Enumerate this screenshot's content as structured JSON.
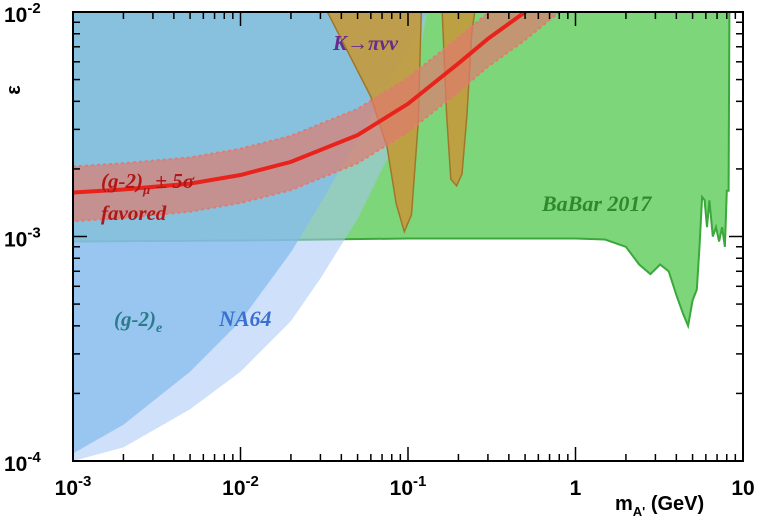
{
  "chart_data": {
    "type": "area",
    "title": "",
    "xlabel_main": "m",
    "xlabel_sub": "A'",
    "xlabel_unit": " (GeV)",
    "ylabel": "ε",
    "x_scale": "log",
    "y_scale": "log",
    "xlim": [
      0.001,
      10
    ],
    "ylim": [
      0.0001,
      0.01
    ],
    "grid": false,
    "x_ticks": [
      {
        "value": 0.001,
        "base": "10",
        "exp": "-3"
      },
      {
        "value": 0.01,
        "base": "10",
        "exp": "-2"
      },
      {
        "value": 0.1,
        "base": "10",
        "exp": "-1"
      },
      {
        "value": 1,
        "base": "1",
        "exp": ""
      },
      {
        "value": 10,
        "base": "10",
        "exp": ""
      }
    ],
    "y_ticks": [
      {
        "value": 0.0001,
        "base": "10",
        "exp": "-4"
      },
      {
        "value": 0.001,
        "base": "10",
        "exp": "-3"
      },
      {
        "value": 0.01,
        "base": "10",
        "exp": "-2"
      }
    ],
    "regions": [
      {
        "id": "babar",
        "label": "BaBar 2017",
        "color": "#7ed67a",
        "edge": "#3aa83a",
        "boundary": [
          [
            0.001,
            0.00095
          ],
          [
            0.01,
            0.00096
          ],
          [
            0.1,
            0.00098
          ],
          [
            1,
            0.00098
          ],
          [
            1.5,
            0.00097
          ],
          [
            2.0,
            0.0009
          ],
          [
            2.4,
            0.00075
          ],
          [
            2.8,
            0.00068
          ],
          [
            3.2,
            0.00075
          ],
          [
            3.6,
            0.0007
          ],
          [
            4.0,
            0.00055
          ],
          [
            4.4,
            0.00045
          ],
          [
            4.7,
            0.0004
          ],
          [
            5.0,
            0.00052
          ],
          [
            5.3,
            0.00058
          ],
          [
            5.5,
            0.0009
          ],
          [
            5.7,
            0.0015
          ],
          [
            5.9,
            0.00145
          ],
          [
            6.1,
            0.0011
          ],
          [
            6.3,
            0.00145
          ],
          [
            6.6,
            0.001
          ],
          [
            6.9,
            0.0011
          ],
          [
            7.2,
            0.00095
          ],
          [
            7.5,
            0.0011
          ],
          [
            7.8,
            0.0009
          ],
          [
            8.0,
            0.0016
          ],
          [
            8.2,
            0.0016
          ],
          [
            8.3,
            0.01
          ]
        ]
      },
      {
        "id": "g2e",
        "label": "(g-2)",
        "label_sub": "e",
        "color": "#5aaee0",
        "boundary": [
          [
            0.001,
            0.000108
          ],
          [
            0.002,
            0.000145
          ],
          [
            0.005,
            0.00025
          ],
          [
            0.01,
            0.00042
          ],
          [
            0.02,
            0.00085
          ],
          [
            0.03,
            0.0014
          ],
          [
            0.05,
            0.0027
          ],
          [
            0.07,
            0.0042
          ],
          [
            0.1,
            0.0068
          ],
          [
            0.13,
            0.01
          ]
        ]
      },
      {
        "id": "na64",
        "label": "NA64",
        "color": "#a6c7f5",
        "boundary": [
          [
            0.002,
            0.000115
          ],
          [
            0.005,
            0.00017
          ],
          [
            0.01,
            0.00025
          ],
          [
            0.02,
            0.00042
          ],
          [
            0.03,
            0.00065
          ],
          [
            0.05,
            0.0012
          ],
          [
            0.07,
            0.002
          ],
          [
            0.1,
            0.0033
          ]
        ]
      },
      {
        "id": "kpinunu",
        "label": "K→πνν",
        "color": "#c49a3c",
        "edge": "#a0772a",
        "boundary": [
          [
            0.033,
            0.01
          ],
          [
            0.06,
            0.0042
          ],
          [
            0.075,
            0.0025
          ],
          [
            0.085,
            0.0014
          ],
          [
            0.095,
            0.00105
          ],
          [
            0.105,
            0.00125
          ],
          [
            0.115,
            0.0032
          ],
          [
            0.12,
            0.01
          ],
          [
            0.16,
            0.01
          ],
          [
            0.17,
            0.0035
          ],
          [
            0.18,
            0.0018
          ],
          [
            0.195,
            0.00168
          ],
          [
            0.21,
            0.0019
          ],
          [
            0.225,
            0.0035
          ],
          [
            0.24,
            0.008
          ],
          [
            0.25,
            0.01
          ]
        ]
      }
    ],
    "series": [
      {
        "id": "g2mu",
        "label": "(g-2)",
        "label_sub": "μ",
        "label_suffix": " ± 5σ",
        "label_line2": "favored",
        "color": "#e8231c",
        "band_color": "#e07b6f",
        "x": [
          0.001,
          0.002,
          0.005,
          0.01,
          0.02,
          0.05,
          0.1,
          0.2,
          0.3,
          0.5,
          0.8
        ],
        "center": [
          0.00157,
          0.00162,
          0.00172,
          0.00188,
          0.00215,
          0.00283,
          0.0039,
          0.0059,
          0.0076,
          0.01,
          0.0135
        ],
        "band_lower": [
          0.00117,
          0.00121,
          0.00129,
          0.00141,
          0.00161,
          0.00212,
          0.00292,
          0.0044,
          0.0057,
          0.0075,
          0.01
        ],
        "band_upper": [
          0.00205,
          0.00212,
          0.00225,
          0.00246,
          0.00281,
          0.0037,
          0.0051,
          0.0077,
          0.0099,
          0.0131,
          0.0176
        ]
      }
    ]
  }
}
